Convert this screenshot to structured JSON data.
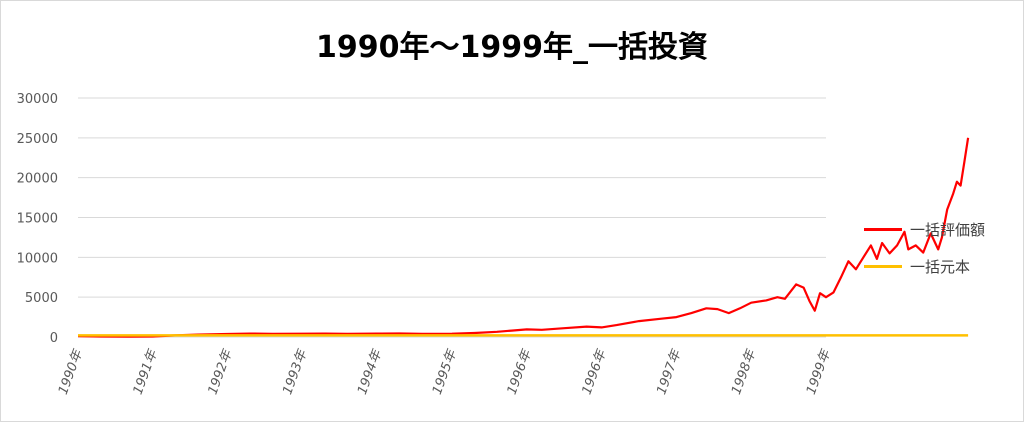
{
  "chart_data": {
    "type": "line",
    "title": "1990年～1999年_一括投資",
    "xlabel": "",
    "ylabel": "",
    "ylim": [
      0,
      30000
    ],
    "yticks": [
      0,
      5000,
      10000,
      15000,
      20000,
      25000,
      30000
    ],
    "x_tick_labels": [
      "1990年",
      "1991年",
      "1992年",
      "1993年",
      "1994年",
      "1995年",
      "1996年",
      "1996年",
      "1997年",
      "1998年",
      "1999年"
    ],
    "grid": true,
    "legend_position": "right",
    "series": [
      {
        "name": "一括評価額",
        "color": "#ff0000",
        "points": [
          [
            0,
            100
          ],
          [
            0.3,
            60
          ],
          [
            0.7,
            40
          ],
          [
            1.0,
            60
          ],
          [
            1.3,
            200
          ],
          [
            1.6,
            300
          ],
          [
            2.0,
            380
          ],
          [
            2.3,
            430
          ],
          [
            2.6,
            400
          ],
          [
            3.0,
            420
          ],
          [
            3.3,
            430
          ],
          [
            3.6,
            400
          ],
          [
            4.0,
            430
          ],
          [
            4.3,
            440
          ],
          [
            4.6,
            400
          ],
          [
            5.0,
            410
          ],
          [
            5.3,
            500
          ],
          [
            5.6,
            650
          ],
          [
            5.8,
            800
          ],
          [
            6.0,
            950
          ],
          [
            6.2,
            900
          ],
          [
            6.5,
            1100
          ],
          [
            6.8,
            1300
          ],
          [
            7.0,
            1200
          ],
          [
            7.2,
            1500
          ],
          [
            7.5,
            2000
          ],
          [
            7.8,
            2300
          ],
          [
            8.0,
            2500
          ],
          [
            8.2,
            3000
          ],
          [
            8.4,
            3600
          ],
          [
            8.55,
            3500
          ],
          [
            8.7,
            3000
          ],
          [
            8.85,
            3600
          ],
          [
            9.0,
            4300
          ],
          [
            9.2,
            4600
          ],
          [
            9.35,
            5000
          ],
          [
            9.45,
            4800
          ],
          [
            9.6,
            6600
          ],
          [
            9.7,
            6200
          ],
          [
            9.78,
            4500
          ],
          [
            9.85,
            3300
          ],
          [
            9.92,
            5500
          ],
          [
            10.0,
            5000
          ],
          [
            10.1,
            5600
          ],
          [
            10.2,
            7500
          ],
          [
            10.3,
            9500
          ],
          [
            10.4,
            8500
          ],
          [
            10.5,
            10000
          ],
          [
            10.6,
            11500
          ],
          [
            10.68,
            9800
          ],
          [
            10.75,
            11800
          ],
          [
            10.85,
            10500
          ],
          [
            10.95,
            11500
          ],
          [
            11.05,
            13200
          ],
          [
            11.1,
            11000
          ],
          [
            11.2,
            11500
          ],
          [
            11.3,
            10600
          ],
          [
            11.4,
            13000
          ],
          [
            11.5,
            11000
          ],
          [
            11.55,
            12500
          ],
          [
            11.62,
            16000
          ],
          [
            11.7,
            18000
          ],
          [
            11.75,
            19500
          ],
          [
            11.8,
            19000
          ],
          [
            11.85,
            22000
          ],
          [
            11.9,
            25000
          ]
        ]
      },
      {
        "name": "一括元本",
        "color": "#ffc000",
        "points": [
          [
            0,
            200
          ],
          [
            11.9,
            200
          ]
        ]
      }
    ]
  }
}
